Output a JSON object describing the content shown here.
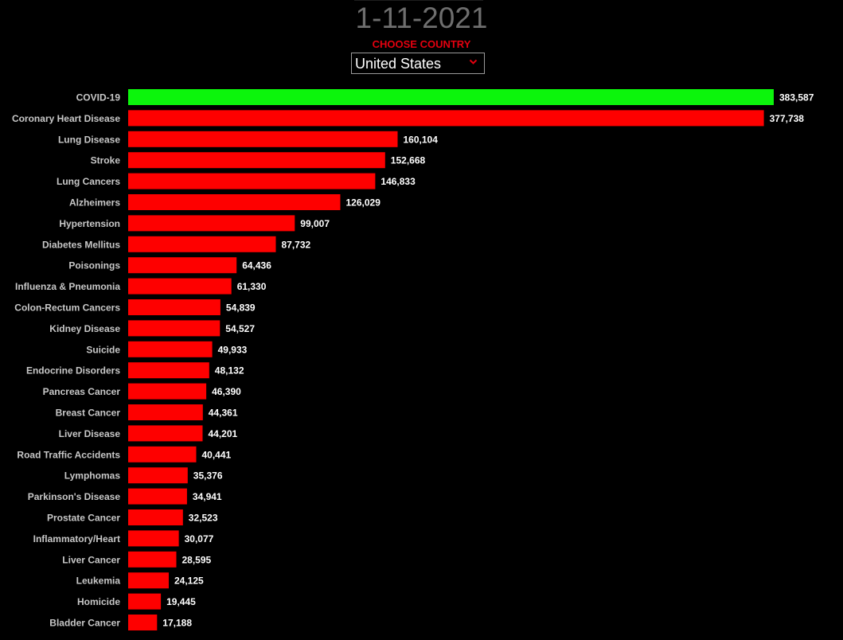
{
  "header": {
    "date": "1-11-2021",
    "choose_label": "CHOOSE COUNTRY",
    "country_selected": "United States"
  },
  "icons": {
    "dropdown": "chevron-down-icon"
  },
  "colors": {
    "background": "#000000",
    "highlight_bar": "#0cf50c",
    "bar": "#fe0000",
    "label_accent": "#e4000f"
  },
  "chart_data": {
    "type": "bar",
    "orientation": "horizontal",
    "title": "",
    "xlabel": "",
    "ylabel": "",
    "xlim": [
      0,
      383587
    ],
    "grid": false,
    "legend": "none",
    "highlight_category": "COVID-19",
    "categories": [
      "COVID-19",
      "Coronary Heart Disease",
      "Lung Disease",
      "Stroke",
      "Lung Cancers",
      "Alzheimers",
      "Hypertension",
      "Diabetes Mellitus",
      "Poisonings",
      "Influenza & Pneumonia",
      "Colon-Rectum Cancers",
      "Kidney Disease",
      "Suicide",
      "Endocrine Disorders",
      "Pancreas Cancer",
      "Breast Cancer",
      "Liver Disease",
      "Road Traffic Accidents",
      "Lymphomas",
      "Parkinson's Disease",
      "Prostate Cancer",
      "Inflammatory/Heart",
      "Liver Cancer",
      "Leukemia",
      "Homicide",
      "Bladder Cancer"
    ],
    "values": [
      383587,
      377738,
      160104,
      152668,
      146833,
      126029,
      99007,
      87732,
      64436,
      61330,
      54839,
      54527,
      49933,
      48132,
      46390,
      44361,
      44201,
      40441,
      35376,
      34941,
      32523,
      30077,
      28595,
      24125,
      19445,
      17188
    ],
    "value_labels": [
      "383,587",
      "377,738",
      "160,104",
      "152,668",
      "146,833",
      "126,029",
      "99,007",
      "87,732",
      "64,436",
      "61,330",
      "54,839",
      "54,527",
      "49,933",
      "48,132",
      "46,390",
      "44,361",
      "44,201",
      "40,441",
      "35,376",
      "34,941",
      "32,523",
      "30,077",
      "28,595",
      "24,125",
      "19,445",
      "17,188"
    ]
  }
}
